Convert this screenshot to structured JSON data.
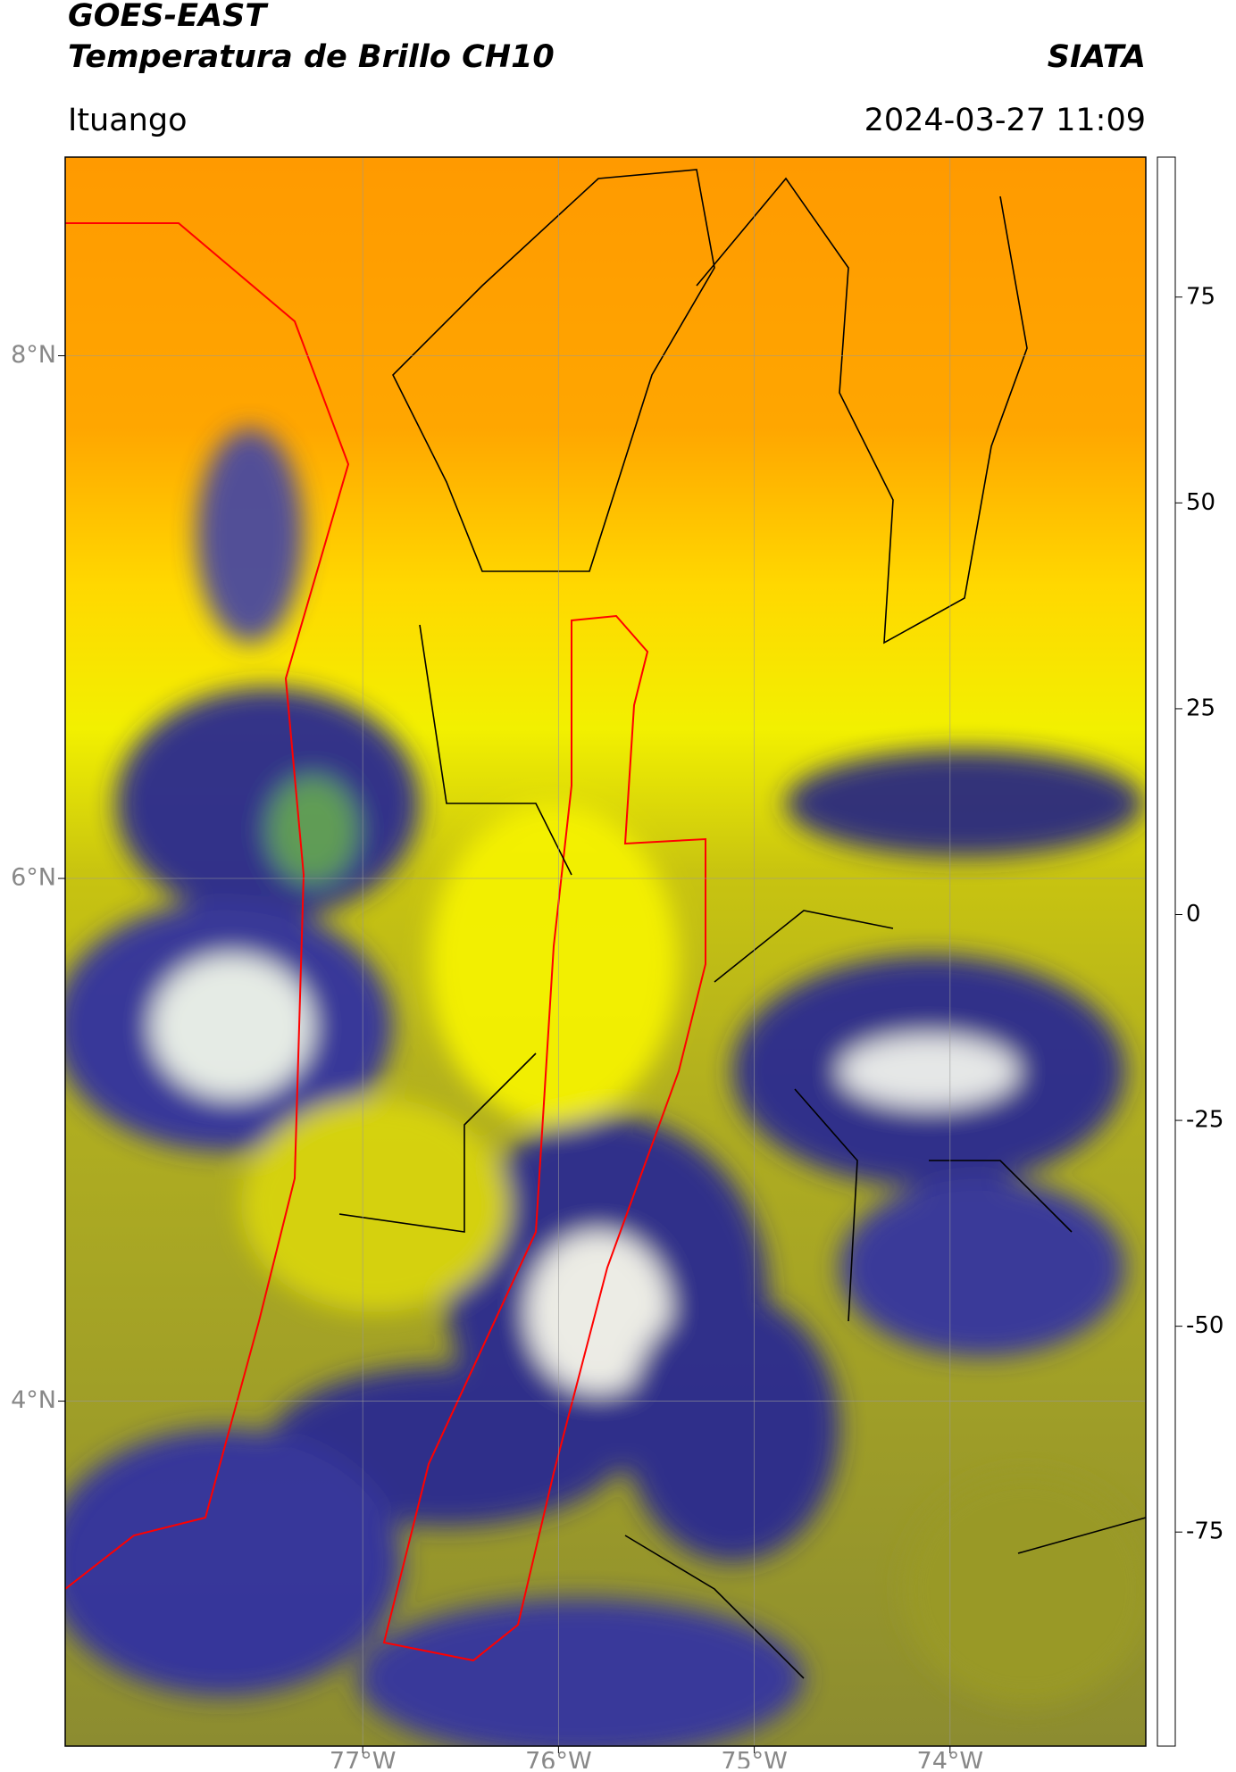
{
  "header": {
    "satellite": "GOES-EAST",
    "product": "Temperatura de Brillo CH10",
    "source": "SIATA",
    "region": "Ituango",
    "datetime": "2024-03-27 11:09"
  },
  "map": {
    "lonlim": [
      -78.52,
      -73.0
    ],
    "latlim": [
      2.68,
      8.76
    ],
    "latticks": [
      {
        "value": 8,
        "label": "8°N"
      },
      {
        "value": 6,
        "label": "6°N"
      },
      {
        "value": 4,
        "label": "4°N"
      }
    ],
    "lonticks": [
      {
        "value": -77,
        "label": "77°W"
      },
      {
        "value": -76,
        "label": "76°W"
      },
      {
        "value": -75,
        "label": "75°W"
      },
      {
        "value": -74,
        "label": "74°W"
      }
    ],
    "grid": true
  },
  "colorbar": {
    "lim": [
      -101,
      92
    ],
    "ticks": [
      75,
      50,
      25,
      0,
      -25,
      -50,
      -75
    ],
    "colormap": [
      [
        -101,
        "#ffffff"
      ],
      [
        -98,
        "#ffffff"
      ],
      [
        -97,
        "#00e5e5"
      ],
      [
        -85,
        "#1fa58a"
      ],
      [
        -65,
        "#2e7d32"
      ],
      [
        -55,
        "#d8e8d8"
      ],
      [
        -50,
        "#ffffff"
      ],
      [
        -42,
        "#8a8ac8"
      ],
      [
        -30,
        "#1a1a80"
      ],
      [
        -25,
        "#1a1a80"
      ],
      [
        -20,
        "#8a8a30"
      ],
      [
        -10,
        "#e8e800"
      ],
      [
        -5,
        "#ffff00"
      ],
      [
        0,
        "#ff9900"
      ],
      [
        5,
        "#ff6600"
      ],
      [
        6,
        "#ff0000"
      ],
      [
        8,
        "#ff0000"
      ],
      [
        9,
        "#000000"
      ],
      [
        92,
        "#000000"
      ]
    ]
  }
}
